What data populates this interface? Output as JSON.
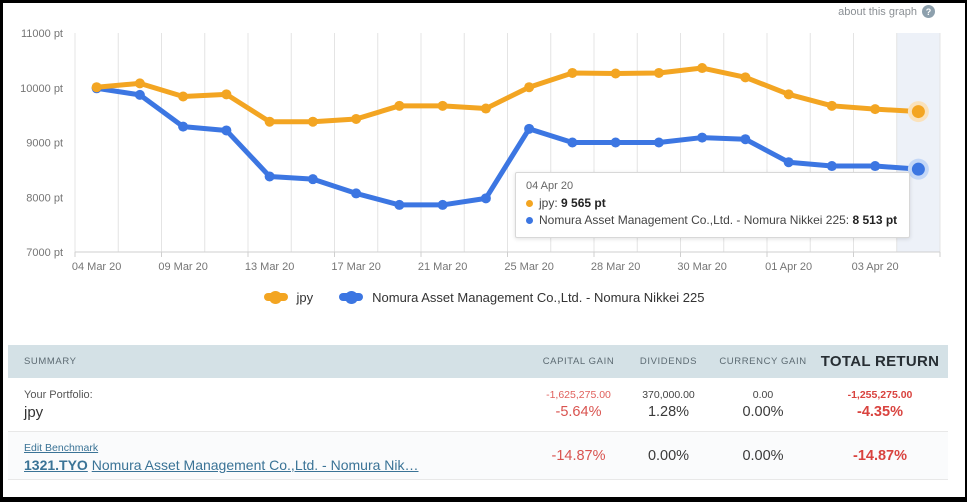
{
  "header": {
    "about_label": "about this graph",
    "help_icon": "?"
  },
  "colors": {
    "series_jpy": "#F3A522",
    "series_jpy_halo": "#FAE2BC",
    "series_benchmark": "#3C76E2",
    "series_benchmark_halo": "#C5D8F7",
    "hover_band": "#EDF1F8",
    "negative_red": "#D9534F",
    "table_header_bg": "#D4E1E6",
    "link_blue": "#3A7396"
  },
  "chart_data": {
    "type": "line",
    "title": "",
    "xlabel": "",
    "ylabel": "",
    "unit": "pt",
    "ylim": [
      7000,
      11000
    ],
    "yticks": [
      11000,
      10000,
      9000,
      8000,
      7000
    ],
    "ytick_format": "{v} pt",
    "grid": "vertical",
    "legend_position": "bottom",
    "categories": [
      "04 Mar 20",
      "",
      "09 Mar 20",
      "",
      "13 Mar 20",
      "",
      "17 Mar 20",
      "",
      "21 Mar 20",
      "",
      "25 Mar 20",
      "",
      "28 Mar 20",
      "",
      "30 Mar 20",
      "",
      "01 Apr 20",
      "",
      "03 Apr 20",
      "04 Apr 20"
    ],
    "axis_tick_indices": [
      0,
      2,
      4,
      6,
      8,
      10,
      12,
      14,
      16,
      18
    ],
    "series": [
      {
        "name": "jpy",
        "color": "#F3A522",
        "halo_color": "#FAE2BC",
        "values": [
          10010,
          10080,
          9840,
          9880,
          9380,
          9380,
          9430,
          9670,
          9670,
          9620,
          10010,
          10270,
          10260,
          10270,
          10360,
          10190,
          9880,
          9670,
          9610,
          9565
        ]
      },
      {
        "name": "Nomura Asset Management Co.,Ltd. - Nomura Nikkei 225",
        "color": "#3C76E2",
        "halo_color": "#C5D8F7",
        "values": [
          9990,
          9870,
          9290,
          9220,
          8380,
          8330,
          8070,
          7860,
          7860,
          7980,
          9250,
          9000,
          9000,
          9000,
          9090,
          9060,
          8640,
          8570,
          8570,
          8513
        ]
      }
    ],
    "hover_band_color": "#EDF1F8",
    "highlight_last_point": true
  },
  "tooltip": {
    "date": "04 Apr 20",
    "rows": [
      {
        "label": "jpy:",
        "value": "9 565 pt"
      },
      {
        "label": "Nomura Asset Management Co.,Ltd. - Nomura Nikkei 225:",
        "value": "8 513 pt"
      }
    ]
  },
  "summary_table": {
    "header": {
      "summary": "Summary",
      "capital_gain": "Capital Gain",
      "dividends": "Dividends",
      "currency_gain": "Currency Gain",
      "total_return": "Total Return"
    },
    "rows": [
      {
        "label_small": "Your Portfolio:",
        "label_main": "jpy",
        "capital_gain": {
          "amount": "-1,625,275.00",
          "percent": "-5.64%"
        },
        "dividends": {
          "amount": "370,000.00",
          "percent": "1.28%"
        },
        "currency_gain": {
          "amount": "0.00",
          "percent": "0.00%"
        },
        "total_return": {
          "amount": "-1,255,275.00",
          "percent": "-4.35%"
        }
      },
      {
        "edit_link": "Edit Benchmark",
        "ticker": "1321.TYO",
        "benchmark_name": "Nomura Asset Management Co.,Ltd. - Nomura Nik…",
        "capital_gain": {
          "percent": "-14.87%"
        },
        "dividends": {
          "percent": "0.00%"
        },
        "currency_gain": {
          "percent": "0.00%"
        },
        "total_return": {
          "percent": "-14.87%"
        }
      }
    ]
  }
}
